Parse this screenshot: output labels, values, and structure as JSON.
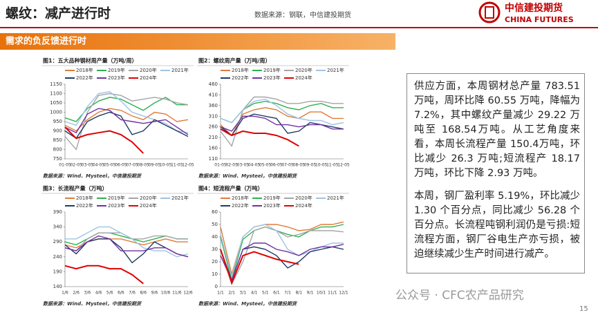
{
  "header": {
    "title": "螺纹：减产进行时",
    "source": "数据来源：钢联，中信建投期货",
    "logo_cn": "中信建投期货",
    "logo_en": "CHINA FUTURES"
  },
  "section": "需求的负反馈进行时",
  "chart_data": [
    {
      "type": "line",
      "title": "图1：五大品种钢材周产量（万吨/周）",
      "source": "数据来源：Wind、Mysteel，中信建投期货",
      "categories": [
        "01-05",
        "02-05",
        "03-05",
        "04-05",
        "05-05",
        "06-05",
        "07-05",
        "08-05",
        "09-05",
        "10-05",
        "11-05",
        "12-05"
      ],
      "ylim": [
        750,
        1150
      ],
      "yticks": [
        750,
        800,
        850,
        900,
        950,
        1000,
        1050,
        1100,
        1150
      ],
      "series": [
        {
          "name": "2018年",
          "color": "#e07b39",
          "values": [
            930,
            900,
            960,
            1000,
            1020,
            1010,
            980,
            960,
            1000,
            990,
            950,
            960
          ]
        },
        {
          "name": "2019年",
          "color": "#2eb050",
          "values": [
            970,
            950,
            1020,
            1060,
            1080,
            1070,
            1040,
            1010,
            1050,
            1080,
            1040,
            1040
          ]
        },
        {
          "name": "2020年",
          "color": "#a5a5a5",
          "values": [
            870,
            800,
            1000,
            1090,
            1100,
            1090,
            1060,
            1070,
            1080,
            1070,
            1050,
            1040
          ]
        },
        {
          "name": "2021年",
          "color": "#9dc3e6",
          "values": [
            950,
            930,
            1030,
            1100,
            1110,
            1060,
            1000,
            980,
            960,
            940,
            900,
            890
          ]
        },
        {
          "name": "2022年",
          "color": "#1f3864",
          "values": [
            900,
            860,
            950,
            980,
            1000,
            980,
            880,
            900,
            960,
            930,
            900,
            870
          ]
        },
        {
          "name": "2023年",
          "color": "#7030a0",
          "values": [
            920,
            890,
            990,
            1020,
            1010,
            960,
            950,
            940,
            950,
            960,
            920,
            880
          ]
        },
        {
          "name": "2024年",
          "color": "#e00000",
          "values": [
            920,
            860,
            880,
            890,
            900,
            880,
            840,
            780,
            null,
            null,
            null,
            null
          ]
        }
      ]
    },
    {
      "type": "line",
      "title": "图2：螺纹周产量（万吨/周）",
      "source": "数据来源：Wind、Mysteel，中信建投期货",
      "categories": [
        "01-05",
        "02-05",
        "03-05",
        "04-05",
        "05-05",
        "06-05",
        "07-05",
        "08-05",
        "09-05",
        "10-05",
        "11-05",
        "12-05"
      ],
      "ylim": [
        110,
        460
      ],
      "yticks": [
        110,
        160,
        210,
        260,
        310,
        360,
        410,
        460
      ],
      "series": [
        {
          "name": "2018年",
          "color": "#e07b39",
          "values": [
            270,
            220,
            320,
            340,
            350,
            340,
            310,
            300,
            330,
            330,
            300,
            300
          ]
        },
        {
          "name": "2019年",
          "color": "#2eb050",
          "values": [
            300,
            280,
            340,
            370,
            380,
            370,
            350,
            340,
            360,
            370,
            350,
            350
          ]
        },
        {
          "name": "2020年",
          "color": "#a5a5a5",
          "values": [
            240,
            170,
            340,
            400,
            400,
            390,
            370,
            370,
            380,
            380,
            370,
            370
          ]
        },
        {
          "name": "2021年",
          "color": "#9dc3e6",
          "values": [
            300,
            280,
            340,
            380,
            390,
            360,
            320,
            300,
            290,
            290,
            270,
            280
          ]
        },
        {
          "name": "2022年",
          "color": "#1f3864",
          "values": [
            260,
            220,
            300,
            320,
            310,
            300,
            230,
            240,
            280,
            270,
            260,
            250
          ]
        },
        {
          "name": "2023年",
          "color": "#7030a0",
          "values": [
            260,
            240,
            310,
            310,
            300,
            270,
            270,
            260,
            270,
            270,
            250,
            250
          ]
        },
        {
          "name": "2024年",
          "color": "#e00000",
          "values": [
            250,
            220,
            240,
            230,
            230,
            220,
            200,
            170,
            null,
            null,
            null,
            null
          ]
        }
      ]
    },
    {
      "type": "line",
      "title": "图3：长流程产量（万吨）",
      "source": "数据来源：Wind、Mysteel，中信建投期货",
      "categories": [
        "1/6",
        "2/6",
        "3/6",
        "4/6",
        "5/6",
        "6/6",
        "7/6",
        "8/6",
        "9/6",
        "10/6",
        "11/6",
        "12/6"
      ],
      "ylim": [
        140,
        390
      ],
      "yticks": [
        140,
        190,
        240,
        290,
        340,
        390
      ],
      "series": [
        {
          "name": "2018年",
          "color": "#e07b39",
          "values": [
            280,
            270,
            290,
            300,
            300,
            300,
            290,
            280,
            290,
            300,
            290,
            290
          ]
        },
        {
          "name": "2019年",
          "color": "#2eb050",
          "values": [
            290,
            280,
            300,
            320,
            320,
            310,
            300,
            290,
            300,
            310,
            300,
            300
          ]
        },
        {
          "name": "2020年",
          "color": "#a5a5a5",
          "values": [
            270,
            260,
            300,
            320,
            320,
            320,
            300,
            300,
            310,
            310,
            300,
            300
          ]
        },
        {
          "name": "2021年",
          "color": "#9dc3e6",
          "values": [
            300,
            300,
            320,
            340,
            340,
            320,
            300,
            270,
            260,
            260,
            240,
            250
          ]
        },
        {
          "name": "2022年",
          "color": "#1f3864",
          "values": [
            280,
            250,
            290,
            300,
            300,
            270,
            220,
            250,
            290,
            270,
            250,
            240
          ]
        },
        {
          "name": "2023年",
          "color": "#7030a0",
          "values": [
            270,
            260,
            290,
            310,
            300,
            260,
            260,
            260,
            270,
            270,
            250,
            240
          ]
        },
        {
          "name": "2024年",
          "color": "#e00000",
          "values": [
            210,
            200,
            210,
            210,
            200,
            200,
            180,
            150,
            null,
            null,
            null,
            null
          ]
        }
      ]
    },
    {
      "type": "line",
      "title": "图4：短流程产量（万吨）",
      "source": "数据来源：Wind、Mysteel，中信建投期货",
      "categories": [
        "1/1",
        "2/1",
        "3/1",
        "4/1",
        "5/1",
        "6/1",
        "7/1",
        "8/1",
        "9/1",
        "10/1",
        "11/1",
        "12/1"
      ],
      "ylim": [
        0,
        60
      ],
      "yticks": [
        0,
        10,
        20,
        30,
        40,
        50,
        60
      ],
      "series": [
        {
          "name": "2018年",
          "color": "#e07b39",
          "values": [
            48,
            10,
            40,
            48,
            50,
            50,
            48,
            45,
            46,
            50,
            50,
            52
          ]
        },
        {
          "name": "2019年",
          "color": "#2eb050",
          "values": [
            40,
            5,
            38,
            45,
            48,
            45,
            42,
            40,
            45,
            48,
            48,
            50
          ]
        },
        {
          "name": "2020年",
          "color": "#a5a5a5",
          "values": [
            30,
            2,
            20,
            45,
            48,
            45,
            40,
            42,
            45,
            45,
            45,
            44
          ]
        },
        {
          "name": "2021年",
          "color": "#9dc3e6",
          "values": [
            42,
            8,
            40,
            48,
            50,
            45,
            30,
            25,
            28,
            32,
            35,
            35
          ]
        },
        {
          "name": "2022年",
          "color": "#1f3864",
          "values": [
            30,
            5,
            30,
            32,
            30,
            25,
            15,
            20,
            28,
            30,
            32,
            30
          ]
        },
        {
          "name": "2023年",
          "color": "#7030a0",
          "values": [
            25,
            5,
            30,
            35,
            35,
            30,
            28,
            25,
            30,
            32,
            32,
            34
          ]
        },
        {
          "name": "2024年",
          "color": "#e00000",
          "values": [
            30,
            3,
            25,
            28,
            25,
            22,
            20,
            18,
            null,
            null,
            null,
            null
          ]
        }
      ]
    }
  ],
  "text_panel": [
    "供应方面，本周钢材总产量 783.51 万吨，周环比降 60.55 万吨，降幅为 7.2%，其中螺纹产量减少 29.22 万吨至 168.54万吨。从工艺角度来看，本周长流程产量 150.4万吨，环比减少 26.3 万吨;短流程产 18.17 万吨，环比下降 2.93 万吨。",
    "本周，钢厂盈利率 5.19%，环比减少 1.30 个百分点，同比减少 56.28 个百分点。长流程吨钢利润仍是亏损:短流程方面，钢厂谷电生产亦亏损，被迫继续减少生产时间进行减产。"
  ],
  "watermark": "公众号 · CFC农产品研究",
  "page_number": "15"
}
